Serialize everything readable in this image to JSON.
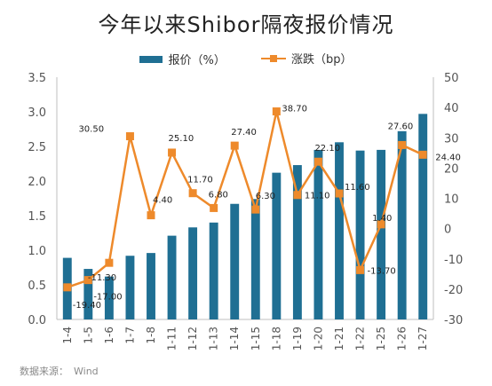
{
  "title": "今年以来Shibor隔夜报价情况",
  "source": {
    "label": "数据来源：",
    "value": "Wind"
  },
  "colors": {
    "bar": "#1f6f93",
    "line": "#ee8a2b",
    "axis": "#bfbfbf",
    "text": "#555555"
  },
  "chart_data": {
    "type": "bar+line",
    "categories": [
      "1-4",
      "1-5",
      "1-6",
      "1-7",
      "1-8",
      "1-11",
      "1-12",
      "1-13",
      "1-14",
      "1-15",
      "1-18",
      "1-19",
      "1-20",
      "1-21",
      "1-22",
      "1-25",
      "1-26",
      "1-27"
    ],
    "series": [
      {
        "name": "报价（%）",
        "type": "bar",
        "axis": "left",
        "values": [
          0.89,
          0.73,
          0.62,
          0.92,
          0.96,
          1.21,
          1.33,
          1.4,
          1.67,
          1.74,
          2.12,
          2.23,
          2.45,
          2.56,
          2.44,
          2.45,
          2.72,
          2.97
        ]
      },
      {
        "name": "涨跌（bp）",
        "type": "line",
        "axis": "right",
        "values": [
          -19.4,
          -17.0,
          -11.3,
          30.5,
          4.4,
          25.1,
          11.7,
          6.8,
          27.4,
          6.3,
          38.7,
          11.1,
          22.1,
          11.6,
          -13.7,
          1.4,
          27.6,
          24.4
        ],
        "labels": [
          "-19.40",
          "-17.00",
          "-11.30",
          "30.50",
          "4.40",
          "25.10",
          "11.70",
          "6.80",
          "27.40",
          "6.30",
          "38.70",
          "11.10",
          "22.10",
          "11.60",
          "-13.70",
          "1.40",
          "27.60",
          "24.40"
        ]
      }
    ],
    "y_left": {
      "min": 0,
      "max": 3.5,
      "ticks": [
        "0.0",
        "0.5",
        "1.0",
        "1.5",
        "2.0",
        "2.5",
        "3.0",
        "3.5"
      ]
    },
    "y_right": {
      "min": -30,
      "max": 50,
      "ticks": [
        "-30",
        "-20",
        "-10",
        "0",
        "10",
        "20",
        "30",
        "40",
        "50"
      ]
    },
    "legend": "top",
    "grid": false
  }
}
